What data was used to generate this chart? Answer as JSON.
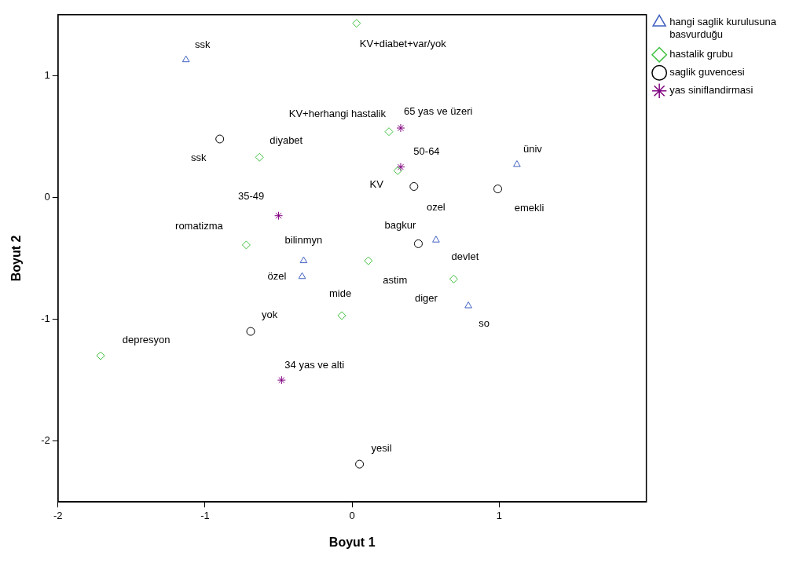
{
  "chart_data": {
    "type": "scatter",
    "xlabel": "Boyut 1",
    "ylabel": "Boyut 2",
    "xlim": [
      -2,
      2
    ],
    "xticks": [
      -2,
      -1,
      0,
      1
    ],
    "ylim": [
      -2.5,
      1.5
    ],
    "yticks": [
      -2,
      -1,
      0,
      1
    ],
    "grid": false,
    "legend": "top right",
    "series": [
      {
        "name": "hangi saglik kurulusuna basvurduğu",
        "color": "#4060c0",
        "marker": "triangle",
        "x": [
          -1.13,
          1.12,
          0.57,
          -0.33,
          -0.34,
          0.79
        ],
        "values": [
          1.13,
          0.27,
          -0.35,
          -0.52,
          -0.65,
          -0.89
        ]
      },
      {
        "name": "hastalik grubu",
        "color": "#40c040",
        "marker": "diamond",
        "x": [
          0.03,
          0.25,
          -0.63,
          0.31,
          -0.72,
          0.11,
          0.69,
          -0.07,
          -1.71
        ],
        "values": [
          1.43,
          0.54,
          0.33,
          0.22,
          -0.39,
          -0.52,
          -0.67,
          -0.97,
          -1.3
        ]
      },
      {
        "name": "saglik guvencesi",
        "color": "#000000",
        "marker": "circle",
        "x": [
          -0.9,
          0.42,
          0.99,
          0.45,
          -0.69,
          0.05
        ],
        "values": [
          0.48,
          0.09,
          0.07,
          -0.38,
          -1.1,
          -2.19
        ]
      },
      {
        "name": "yas siniflandirmasi",
        "color": "#800080",
        "marker": "cross",
        "x": [
          0.33,
          0.33,
          -0.5,
          -0.48
        ],
        "values": [
          0.57,
          0.25,
          -0.15,
          -1.5
        ]
      }
    ],
    "annotations": [
      {
        "text": "ssk",
        "x": -1.13,
        "y": 1.13
      },
      {
        "text": "üniv",
        "x": 1.12,
        "y": 0.27
      },
      {
        "text": "devlet",
        "x": 0.57,
        "y": -0.35
      },
      {
        "text": "bilinmyn",
        "x": -0.33,
        "y": -0.52
      },
      {
        "text": "özel",
        "x": -0.34,
        "y": -0.65
      },
      {
        "text": "so",
        "x": 0.79,
        "y": -0.89
      },
      {
        "text": "KV+diabet+var/yok",
        "x": 0.03,
        "y": 1.43
      },
      {
        "text": "KV+herhangi hastalik",
        "x": 0.25,
        "y": 0.54
      },
      {
        "text": "diyabet",
        "x": -0.63,
        "y": 0.33
      },
      {
        "text": "KV",
        "x": 0.31,
        "y": 0.22
      },
      {
        "text": "romatizma",
        "x": -0.72,
        "y": -0.39
      },
      {
        "text": "astim",
        "x": 0.11,
        "y": -0.52
      },
      {
        "text": "diger",
        "x": 0.69,
        "y": -0.67
      },
      {
        "text": "mide",
        "x": -0.07,
        "y": -0.97
      },
      {
        "text": "depresyon",
        "x": -1.71,
        "y": -1.3
      },
      {
        "text": "ssk",
        "x": -0.9,
        "y": 0.48
      },
      {
        "text": "ozel",
        "x": 0.42,
        "y": 0.09
      },
      {
        "text": "emekli",
        "x": 0.99,
        "y": 0.07
      },
      {
        "text": "bagkur",
        "x": 0.45,
        "y": -0.38
      },
      {
        "text": "yok",
        "x": -0.69,
        "y": -1.1
      },
      {
        "text": "yesil",
        "x": 0.05,
        "y": -2.19
      },
      {
        "text": "65 yas ve üzeri",
        "x": 0.33,
        "y": 0.57
      },
      {
        "text": "50-64",
        "x": 0.33,
        "y": 0.25
      },
      {
        "text": "35-49",
        "x": -0.5,
        "y": -0.15
      },
      {
        "text": "34 yas ve alti",
        "x": -0.48,
        "y": -1.5
      }
    ]
  }
}
